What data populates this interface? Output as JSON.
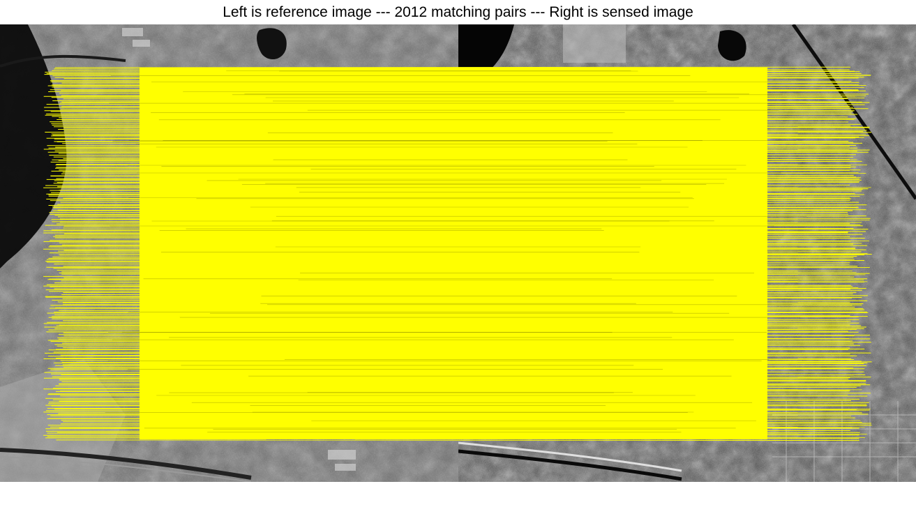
{
  "figure": {
    "title": "Left is reference image --- 2012 matching pairs --- Right is sensed image"
  },
  "reference_image": {
    "description_role": "optical",
    "colors": {
      "dark": "#0a0a0a",
      "mid": "#6a6a6a",
      "light": "#bdbdbd"
    }
  },
  "sensed_image": {
    "description_role": "sar",
    "colors": {
      "dark": "#050505",
      "mid": "#4a4a4a",
      "light": "#d8d8d8"
    }
  },
  "matches": {
    "count": 2012,
    "line_color": "#ffff00",
    "band_color": "#ffff00"
  }
}
